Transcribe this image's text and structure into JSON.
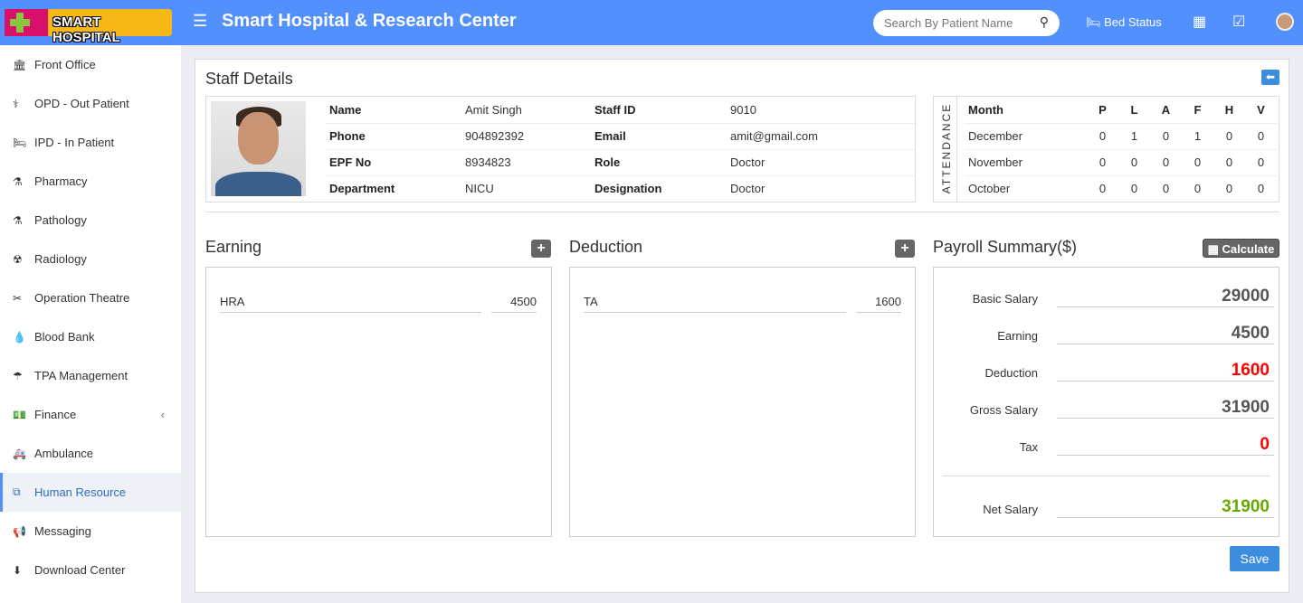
{
  "header": {
    "logo_text": "SMART HOSPITAL",
    "title": "Smart Hospital & Research Center",
    "search_placeholder": "Search By Patient Name",
    "bed_status": "Bed Status"
  },
  "sidebar": {
    "items": [
      {
        "label": "Front Office",
        "icon": "🏛"
      },
      {
        "label": "OPD - Out Patient",
        "icon": "⚕"
      },
      {
        "label": "IPD - In Patient",
        "icon": "🛏"
      },
      {
        "label": "Pharmacy",
        "icon": "⚗"
      },
      {
        "label": "Pathology",
        "icon": "⚗"
      },
      {
        "label": "Radiology",
        "icon": "☢"
      },
      {
        "label": "Operation Theatre",
        "icon": "✂"
      },
      {
        "label": "Blood Bank",
        "icon": "💧"
      },
      {
        "label": "TPA Management",
        "icon": "☂"
      },
      {
        "label": "Finance",
        "icon": "💵"
      },
      {
        "label": "Ambulance",
        "icon": "🚑"
      },
      {
        "label": "Human Resource",
        "icon": "⧉"
      },
      {
        "label": "Messaging",
        "icon": "📢"
      },
      {
        "label": "Download Center",
        "icon": "⬇"
      }
    ],
    "active": "Human Resource",
    "accent": "#5190fd"
  },
  "staff": {
    "title": "Staff Details",
    "rows": [
      [
        "Name",
        "Amit Singh",
        "Staff ID",
        "9010"
      ],
      [
        "Phone",
        "904892392",
        "Email",
        "amit@gmail.com"
      ],
      [
        "EPF No",
        "8934823",
        "Role",
        "Doctor"
      ],
      [
        "Department",
        "NICU",
        "Designation",
        "Doctor"
      ]
    ]
  },
  "attendance": {
    "label": "ATTENDANCE",
    "headers": [
      "Month",
      "P",
      "L",
      "A",
      "F",
      "H",
      "V"
    ],
    "rows": [
      [
        "December",
        "0",
        "1",
        "0",
        "1",
        "0",
        "0"
      ],
      [
        "November",
        "0",
        "0",
        "0",
        "0",
        "0",
        "0"
      ],
      [
        "October",
        "0",
        "0",
        "0",
        "0",
        "0",
        "0"
      ]
    ]
  },
  "earning": {
    "title": "Earning",
    "items": [
      {
        "name": "HRA",
        "amount": "4500"
      }
    ]
  },
  "deduction": {
    "title": "Deduction",
    "items": [
      {
        "name": "TA",
        "amount": "1600"
      }
    ]
  },
  "payroll": {
    "title": "Payroll Summary($)",
    "calculate": "Calculate",
    "rows": [
      {
        "label": "Basic Salary",
        "value": "29000",
        "color": "#555555"
      },
      {
        "label": "Earning",
        "value": "4500",
        "color": "#555555"
      },
      {
        "label": "Deduction",
        "value": "1600",
        "color": "#ff0000"
      },
      {
        "label": "Gross Salary",
        "value": "31900",
        "color": "#555555"
      },
      {
        "label": "Tax",
        "value": "0",
        "color": "#ff0000"
      }
    ],
    "net": {
      "label": "Net Salary",
      "value": "31900",
      "color": "#66aa00"
    },
    "save": "Save"
  }
}
